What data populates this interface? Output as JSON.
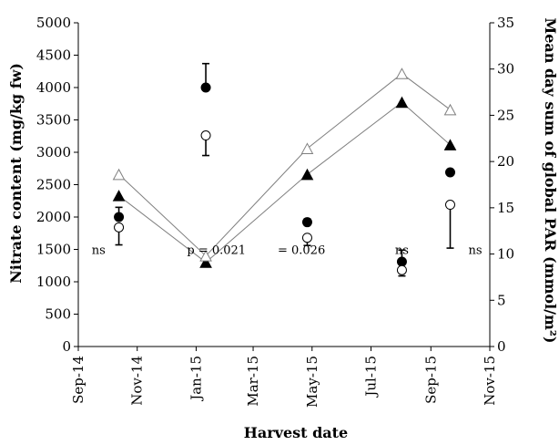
{
  "chart_data": {
    "type": "scatter",
    "xlabel": "Harvest date",
    "ylabel_left": "Nitrate content (mg/kg fw)",
    "ylabel_right": "Mean day sum of global PAR (mmol/m²)",
    "x_ticks": [
      "Sep-14",
      "Nov-14",
      "Jan-15",
      "Mar-15",
      "May-15",
      "Jul-15",
      "Sep-15",
      "Nov-15"
    ],
    "xlim": [
      "2014-09-01",
      "2015-11-01"
    ],
    "ylim_left": [
      0,
      5000
    ],
    "ylim_right": [
      0,
      35
    ],
    "y_ticks_left": [
      "0",
      "500",
      "1000",
      "1500",
      "2000",
      "2500",
      "3000",
      "3500",
      "4000",
      "4500",
      "5000"
    ],
    "y_ticks_right": [
      "0",
      "5",
      "10",
      "15",
      "20",
      "25",
      "30",
      "35"
    ],
    "grid": false,
    "legend": "none",
    "series": [
      {
        "marker": "filled-circle",
        "axis": "left",
        "x": [
          "2014-10-13",
          "2015-01-11",
          "2015-04-26",
          "2015-08-02",
          "2015-09-21"
        ],
        "y": [
          2000,
          4000,
          1920,
          1310,
          2690
        ],
        "err_high": [
          2150,
          4370,
          1970,
          1490,
          2690
        ],
        "err_low": [
          2000,
          4000,
          1920,
          1310,
          2690
        ]
      },
      {
        "marker": "open-circle",
        "axis": "left",
        "x": [
          "2014-10-13",
          "2015-01-11",
          "2015-04-26",
          "2015-08-02",
          "2015-09-21"
        ],
        "y": [
          1840,
          3260,
          1680,
          1180,
          2190
        ],
        "err_high": [
          1840,
          3260,
          1680,
          1180,
          2190
        ],
        "err_low": [
          1570,
          2950,
          1560,
          1090,
          1520
        ]
      },
      {
        "marker": "filled-triangle",
        "axis": "right",
        "line": true,
        "x": [
          "2014-10-13",
          "2015-01-11",
          "2015-04-26",
          "2015-08-02",
          "2015-09-21"
        ],
        "y": [
          16.3,
          9.1,
          18.6,
          26.4,
          21.8
        ]
      },
      {
        "marker": "open-triangle",
        "axis": "right",
        "line": true,
        "x": [
          "2014-10-13",
          "2015-01-11",
          "2015-04-26",
          "2015-08-02",
          "2015-09-21"
        ],
        "y": [
          18.6,
          9.8,
          21.4,
          29.5,
          25.6
        ]
      }
    ],
    "annotations": [
      {
        "text": "ns",
        "x": "2014-09-22",
        "y": 1500
      },
      {
        "text": "p = 0.021",
        "x": "2015-01-22",
        "y": 1500
      },
      {
        "text": "= 0.026",
        "x": "2015-04-20",
        "y": 1500
      },
      {
        "text": "ns",
        "x": "2015-08-02",
        "y": 1500
      },
      {
        "text": "ns",
        "x": "2015-10-17",
        "y": 1500
      }
    ]
  }
}
